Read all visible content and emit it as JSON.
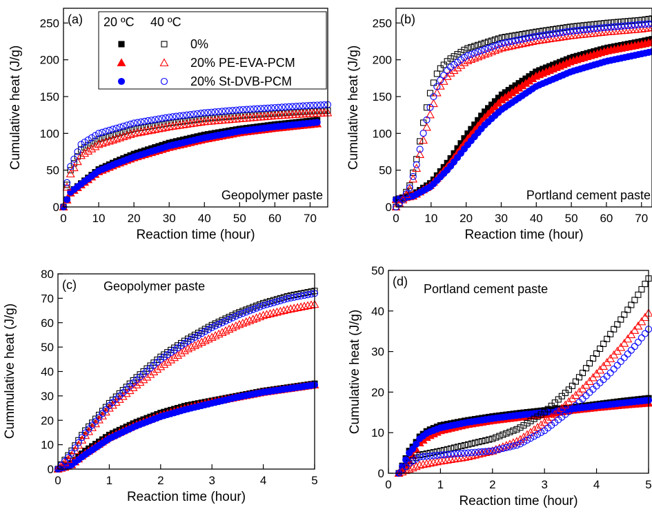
{
  "colors": {
    "black": "#000000",
    "red": "#ff0000",
    "blue": "#0000ff"
  },
  "legend": {
    "col1_header": "20 ºC",
    "col2_header": "40 ºC",
    "entries": [
      {
        "label": "0%",
        "color": "#000000",
        "marker": "square"
      },
      {
        "label": "20% PE-EVA-PCM",
        "color": "#ff0000",
        "marker": "triangle"
      },
      {
        "label": "20% St-DVB-PCM",
        "color": "#0000ff",
        "marker": "circle"
      }
    ]
  },
  "chart_data": [
    {
      "type": "scatter",
      "panel_label": "(a)",
      "annotation": "Geopolymer paste",
      "xlabel": "Reaction time (hour)",
      "ylabel": "Cumulative heat (J/g)",
      "xlim": [
        0,
        75
      ],
      "ylim": [
        0,
        270
      ],
      "xticks": [
        0,
        10,
        20,
        30,
        40,
        50,
        60,
        70
      ],
      "yticks": [
        0,
        50,
        100,
        150,
        200,
        250
      ],
      "legend_placement": "top-center",
      "series": [
        {
          "name": "0%",
          "temp": "20 ºC",
          "color": "#000000",
          "marker": "square",
          "filled": true,
          "x": [
            0,
            2,
            5,
            10,
            15,
            20,
            30,
            40,
            50,
            60,
            70,
            72
          ],
          "y": [
            0,
            20,
            32,
            51,
            62,
            72,
            87,
            98,
            106,
            112,
            117,
            118
          ]
        },
        {
          "name": "20% PE-EVA-PCM",
          "temp": "20 ºC",
          "color": "#ff0000",
          "marker": "triangle",
          "filled": true,
          "x": [
            0,
            2,
            5,
            10,
            15,
            20,
            30,
            40,
            50,
            60,
            70,
            72
          ],
          "y": [
            0,
            19,
            30,
            48,
            58,
            67,
            81,
            92,
            101,
            107,
            112,
            113
          ]
        },
        {
          "name": "20% St-DVB-PCM",
          "temp": "20 ºC",
          "color": "#0000ff",
          "marker": "circle",
          "filled": true,
          "x": [
            0,
            2,
            5,
            10,
            15,
            20,
            30,
            40,
            50,
            60,
            70,
            72
          ],
          "y": [
            0,
            20,
            31,
            49,
            59,
            68,
            83,
            94,
            103,
            109,
            114,
            115
          ]
        },
        {
          "name": "0%",
          "temp": "40 ºC",
          "color": "#000000",
          "marker": "square",
          "filled": false,
          "x": [
            0,
            1,
            2,
            5,
            10,
            20,
            30,
            40,
            50,
            60,
            70,
            75
          ],
          "y": [
            0,
            30,
            50,
            78,
            92,
            106,
            114,
            120,
            124,
            127,
            130,
            131
          ]
        },
        {
          "name": "20% PE-EVA-PCM",
          "temp": "40 ºC",
          "color": "#ff0000",
          "marker": "triangle",
          "filled": false,
          "x": [
            0,
            1,
            2,
            5,
            10,
            20,
            30,
            40,
            50,
            60,
            70,
            75
          ],
          "y": [
            0,
            27,
            45,
            70,
            85,
            100,
            109,
            116,
            120,
            124,
            127,
            128
          ]
        },
        {
          "name": "20% St-DVB-PCM",
          "temp": "40 ºC",
          "color": "#0000ff",
          "marker": "circle",
          "filled": false,
          "x": [
            0,
            1,
            2,
            5,
            10,
            20,
            30,
            40,
            50,
            60,
            70,
            75
          ],
          "y": [
            0,
            33,
            55,
            85,
            100,
            114,
            122,
            128,
            132,
            135,
            138,
            139
          ]
        }
      ]
    },
    {
      "type": "scatter",
      "panel_label": "(b)",
      "annotation": "Portland cement paste",
      "xlabel": "Reaction time (hour)",
      "ylabel": "Cumulative heat (J/g)",
      "xlim": [
        0,
        73
      ],
      "ylim": [
        0,
        270
      ],
      "xticks": [
        0,
        10,
        20,
        30,
        40,
        50,
        60,
        70
      ],
      "yticks": [
        0,
        50,
        100,
        150,
        200,
        250
      ],
      "series": [
        {
          "name": "0%",
          "temp": "20 ºC",
          "color": "#000000",
          "marker": "square",
          "filled": true,
          "x": [
            0,
            5,
            10,
            15,
            20,
            25,
            30,
            40,
            50,
            60,
            70,
            73
          ],
          "y": [
            10,
            17,
            33,
            62,
            97,
            128,
            152,
            184,
            203,
            216,
            225,
            228
          ]
        },
        {
          "name": "20% PE-EVA-PCM",
          "temp": "20 ºC",
          "color": "#ff0000",
          "marker": "triangle",
          "filled": true,
          "x": [
            0,
            5,
            10,
            15,
            20,
            25,
            30,
            40,
            50,
            60,
            70,
            73
          ],
          "y": [
            10,
            15,
            30,
            57,
            90,
            120,
            145,
            178,
            198,
            212,
            221,
            224
          ]
        },
        {
          "name": "20% St-DVB-PCM",
          "temp": "20 ºC",
          "color": "#0000ff",
          "marker": "circle",
          "filled": true,
          "x": [
            0,
            5,
            10,
            15,
            20,
            25,
            30,
            40,
            50,
            60,
            70,
            73
          ],
          "y": [
            10,
            15,
            28,
            52,
            82,
            110,
            132,
            164,
            184,
            198,
            208,
            211
          ]
        },
        {
          "name": "0%",
          "temp": "40 ºC",
          "color": "#000000",
          "marker": "square",
          "filled": false,
          "x": [
            0,
            2,
            4,
            6,
            8,
            10,
            12,
            15,
            20,
            30,
            40,
            50,
            60,
            70,
            73
          ],
          "y": [
            0,
            12,
            30,
            68,
            120,
            160,
            185,
            200,
            215,
            230,
            238,
            245,
            250,
            254,
            256
          ]
        },
        {
          "name": "20% PE-EVA-PCM",
          "temp": "40 ºC",
          "color": "#ff0000",
          "marker": "triangle",
          "filled": false,
          "x": [
            0,
            2,
            4,
            6,
            8,
            10,
            12,
            15,
            20,
            30,
            40,
            50,
            60,
            70,
            73
          ],
          "y": [
            0,
            10,
            25,
            55,
            95,
            130,
            160,
            180,
            198,
            216,
            226,
            233,
            238,
            242,
            244
          ]
        },
        {
          "name": "20% St-DVB-PCM",
          "temp": "40 ºC",
          "color": "#0000ff",
          "marker": "circle",
          "filled": false,
          "x": [
            0,
            2,
            4,
            6,
            8,
            10,
            12,
            15,
            20,
            30,
            40,
            50,
            60,
            70,
            73
          ],
          "y": [
            0,
            10,
            27,
            60,
            105,
            140,
            168,
            188,
            205,
            222,
            232,
            239,
            244,
            248,
            249
          ]
        }
      ]
    },
    {
      "type": "scatter",
      "panel_label": "(c)",
      "annotation": "Geopolymer paste",
      "xlabel": "Reaction time (hour)",
      "ylabel": "Cummulative heat (J/g)",
      "xlim": [
        0,
        5
      ],
      "ylim": [
        0,
        80
      ],
      "xticks": [
        0,
        1,
        2,
        3,
        4,
        5
      ],
      "yticks": [
        0,
        10,
        20,
        30,
        40,
        50,
        60,
        70,
        80
      ],
      "series": [
        {
          "name": "0%",
          "temp": "20 ºC",
          "color": "#000000",
          "marker": "square",
          "filled": true,
          "x": [
            0,
            0.25,
            0.5,
            1,
            1.5,
            2,
            2.5,
            3,
            3.5,
            4,
            4.5,
            5
          ],
          "y": [
            0,
            2,
            7,
            14,
            19,
            23,
            26,
            28,
            30,
            32,
            33.5,
            35
          ]
        },
        {
          "name": "20% PE-EVA-PCM",
          "temp": "20 ºC",
          "color": "#ff0000",
          "marker": "triangle",
          "filled": true,
          "x": [
            0,
            0.25,
            0.5,
            1,
            1.5,
            2,
            2.5,
            3,
            3.5,
            4,
            4.5,
            5
          ],
          "y": [
            0,
            1.5,
            6,
            13,
            18,
            22,
            25,
            27.5,
            29.5,
            31.5,
            33,
            34.5
          ]
        },
        {
          "name": "20% St-DVB-PCM",
          "temp": "20 ºC",
          "color": "#0000ff",
          "marker": "circle",
          "filled": true,
          "x": [
            0,
            0.25,
            0.5,
            1,
            1.5,
            2,
            2.5,
            3,
            3.5,
            4,
            4.5,
            5
          ],
          "y": [
            0,
            1.5,
            5.5,
            12.5,
            17.5,
            21.5,
            24.5,
            27,
            29.5,
            31.5,
            33,
            34.5
          ]
        },
        {
          "name": "0%",
          "temp": "40 ºC",
          "color": "#000000",
          "marker": "square",
          "filled": false,
          "x": [
            0,
            0.25,
            0.5,
            1,
            1.5,
            2,
            2.5,
            3,
            3.5,
            4,
            4.5,
            5
          ],
          "y": [
            0,
            7,
            15,
            27,
            37,
            46,
            53,
            59,
            64,
            68,
            71,
            73
          ]
        },
        {
          "name": "20% PE-EVA-PCM",
          "temp": "40 ºC",
          "color": "#ff0000",
          "marker": "triangle",
          "filled": false,
          "x": [
            0,
            0.25,
            0.5,
            1,
            1.5,
            2,
            2.5,
            3,
            3.5,
            4,
            4.5,
            5
          ],
          "y": [
            0,
            5,
            13,
            25,
            34,
            42,
            49,
            54,
            59,
            63,
            65.5,
            67.5
          ]
        },
        {
          "name": "20% St-DVB-PCM",
          "temp": "40 ºC",
          "color": "#0000ff",
          "marker": "circle",
          "filled": false,
          "x": [
            0,
            0.25,
            0.5,
            1,
            1.5,
            2,
            2.5,
            3,
            3.5,
            4,
            4.5,
            5
          ],
          "y": [
            0,
            6,
            14,
            26,
            36,
            45,
            52,
            58,
            63,
            67,
            70,
            72
          ]
        }
      ]
    },
    {
      "type": "scatter",
      "panel_label": "(d)",
      "annotation": "Portland cement paste",
      "xlabel": "Reaction time (hour)",
      "ylabel": "Cumulative heat (J/g)",
      "xlim": [
        0,
        5
      ],
      "ylim": [
        0,
        50
      ],
      "xticks": [
        0,
        1,
        2,
        3,
        4,
        5
      ],
      "yticks": [
        0,
        10,
        20,
        30,
        40,
        50
      ],
      "series": [
        {
          "name": "0%",
          "temp": "20 ºC",
          "color": "#000000",
          "marker": "square",
          "filled": true,
          "x": [
            0.2,
            0.4,
            0.5,
            0.6,
            0.75,
            1,
            1.5,
            2,
            2.5,
            3,
            3.5,
            4,
            4.5,
            5
          ],
          "y": [
            0,
            5.5,
            7,
            9,
            10.5,
            11.8,
            13,
            14,
            14.8,
            15.5,
            16.2,
            17,
            17.8,
            18.5
          ]
        },
        {
          "name": "20% PE-EVA-PCM",
          "temp": "20 ºC",
          "color": "#ff0000",
          "marker": "triangle",
          "filled": true,
          "x": [
            0.2,
            0.4,
            0.5,
            0.6,
            0.75,
            1,
            1.5,
            2,
            2.5,
            3,
            3.5,
            4,
            4.5,
            5
          ],
          "y": [
            0,
            3,
            5,
            7.5,
            9,
            10.5,
            12,
            13,
            13.8,
            14.5,
            15.5,
            16.2,
            16.8,
            17.3
          ]
        },
        {
          "name": "20% St-DVB-PCM",
          "temp": "20 ºC",
          "color": "#0000ff",
          "marker": "circle",
          "filled": true,
          "x": [
            0.2,
            0.4,
            0.5,
            0.6,
            0.75,
            1,
            1.5,
            2,
            2.5,
            3,
            3.5,
            4,
            4.5,
            5
          ],
          "y": [
            0,
            5,
            6.5,
            8.5,
            10,
            11.2,
            12.5,
            13.5,
            14.3,
            15,
            15.8,
            16.6,
            17.3,
            18
          ]
        },
        {
          "name": "0%",
          "temp": "40 ºC",
          "color": "#000000",
          "marker": "square",
          "filled": false,
          "x": [
            0.2,
            0.4,
            0.6,
            1,
            1.5,
            2,
            2.5,
            3,
            3.25,
            3.5,
            3.75,
            4,
            4.25,
            4.5,
            4.75,
            5
          ],
          "y": [
            0,
            2.5,
            4.5,
            5.5,
            7,
            8.5,
            11,
            15,
            18,
            21,
            25,
            29.5,
            34,
            38.5,
            43,
            48
          ]
        },
        {
          "name": "20% PE-EVA-PCM",
          "temp": "40 ºC",
          "color": "#ff0000",
          "marker": "triangle",
          "filled": false,
          "x": [
            0.2,
            0.4,
            0.6,
            1,
            1.5,
            2,
            2.5,
            3,
            3.25,
            3.5,
            3.75,
            4,
            4.25,
            4.5,
            4.75,
            5
          ],
          "y": [
            0,
            1,
            2,
            3,
            4,
            5.5,
            8,
            12.5,
            15,
            18,
            21,
            24.5,
            28,
            31.5,
            35.5,
            39.5
          ]
        },
        {
          "name": "20% St-DVB-PCM",
          "temp": "40 ºC",
          "color": "#0000ff",
          "marker": "circle",
          "filled": false,
          "x": [
            0.2,
            0.4,
            0.6,
            1,
            1.5,
            2,
            2.5,
            3,
            3.25,
            3.5,
            3.75,
            4,
            4.25,
            4.5,
            4.75,
            5
          ],
          "y": [
            0,
            2.5,
            4,
            4.5,
            5,
            5.5,
            7,
            10.5,
            13,
            15.5,
            18.5,
            21.5,
            24.5,
            28,
            31.5,
            35.5
          ]
        }
      ]
    }
  ]
}
